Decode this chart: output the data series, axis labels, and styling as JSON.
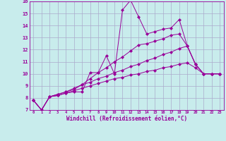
{
  "xlabel": "Windchill (Refroidissement éolien,°C)",
  "xlim": [
    -0.5,
    23.5
  ],
  "ylim": [
    7,
    16
  ],
  "yticks": [
    7,
    8,
    9,
    10,
    11,
    12,
    13,
    14,
    15,
    16
  ],
  "xticks": [
    0,
    1,
    2,
    3,
    4,
    5,
    6,
    7,
    8,
    9,
    10,
    11,
    12,
    13,
    14,
    15,
    16,
    17,
    18,
    19,
    20,
    21,
    22,
    23
  ],
  "bg_color": "#c8ecec",
  "grid_color": "#aaaacc",
  "line_color": "#990099",
  "series": [
    [
      7.8,
      7.0,
      8.1,
      8.2,
      8.4,
      8.5,
      8.5,
      10.1,
      10.1,
      11.5,
      10.0,
      15.3,
      16.1,
      14.7,
      13.3,
      13.5,
      13.7,
      13.8,
      14.5,
      12.3,
      10.8,
      10.0,
      10.0,
      10.0
    ],
    [
      7.8,
      7.0,
      8.1,
      8.3,
      8.5,
      8.7,
      9.1,
      9.6,
      10.1,
      10.5,
      11.0,
      11.4,
      11.9,
      12.4,
      12.5,
      12.7,
      12.9,
      13.2,
      13.3,
      12.3,
      10.8,
      10.0,
      10.0,
      10.0
    ],
    [
      7.8,
      7.0,
      8.1,
      8.3,
      8.5,
      8.8,
      9.1,
      9.3,
      9.6,
      9.8,
      10.1,
      10.3,
      10.6,
      10.8,
      11.1,
      11.3,
      11.6,
      11.8,
      12.1,
      12.3,
      10.8,
      10.0,
      10.0,
      10.0
    ],
    [
      7.8,
      7.0,
      8.1,
      8.2,
      8.4,
      8.6,
      8.8,
      9.0,
      9.2,
      9.4,
      9.6,
      9.7,
      9.9,
      10.0,
      10.2,
      10.3,
      10.5,
      10.6,
      10.8,
      10.9,
      10.5,
      10.0,
      10.0,
      10.0
    ]
  ]
}
